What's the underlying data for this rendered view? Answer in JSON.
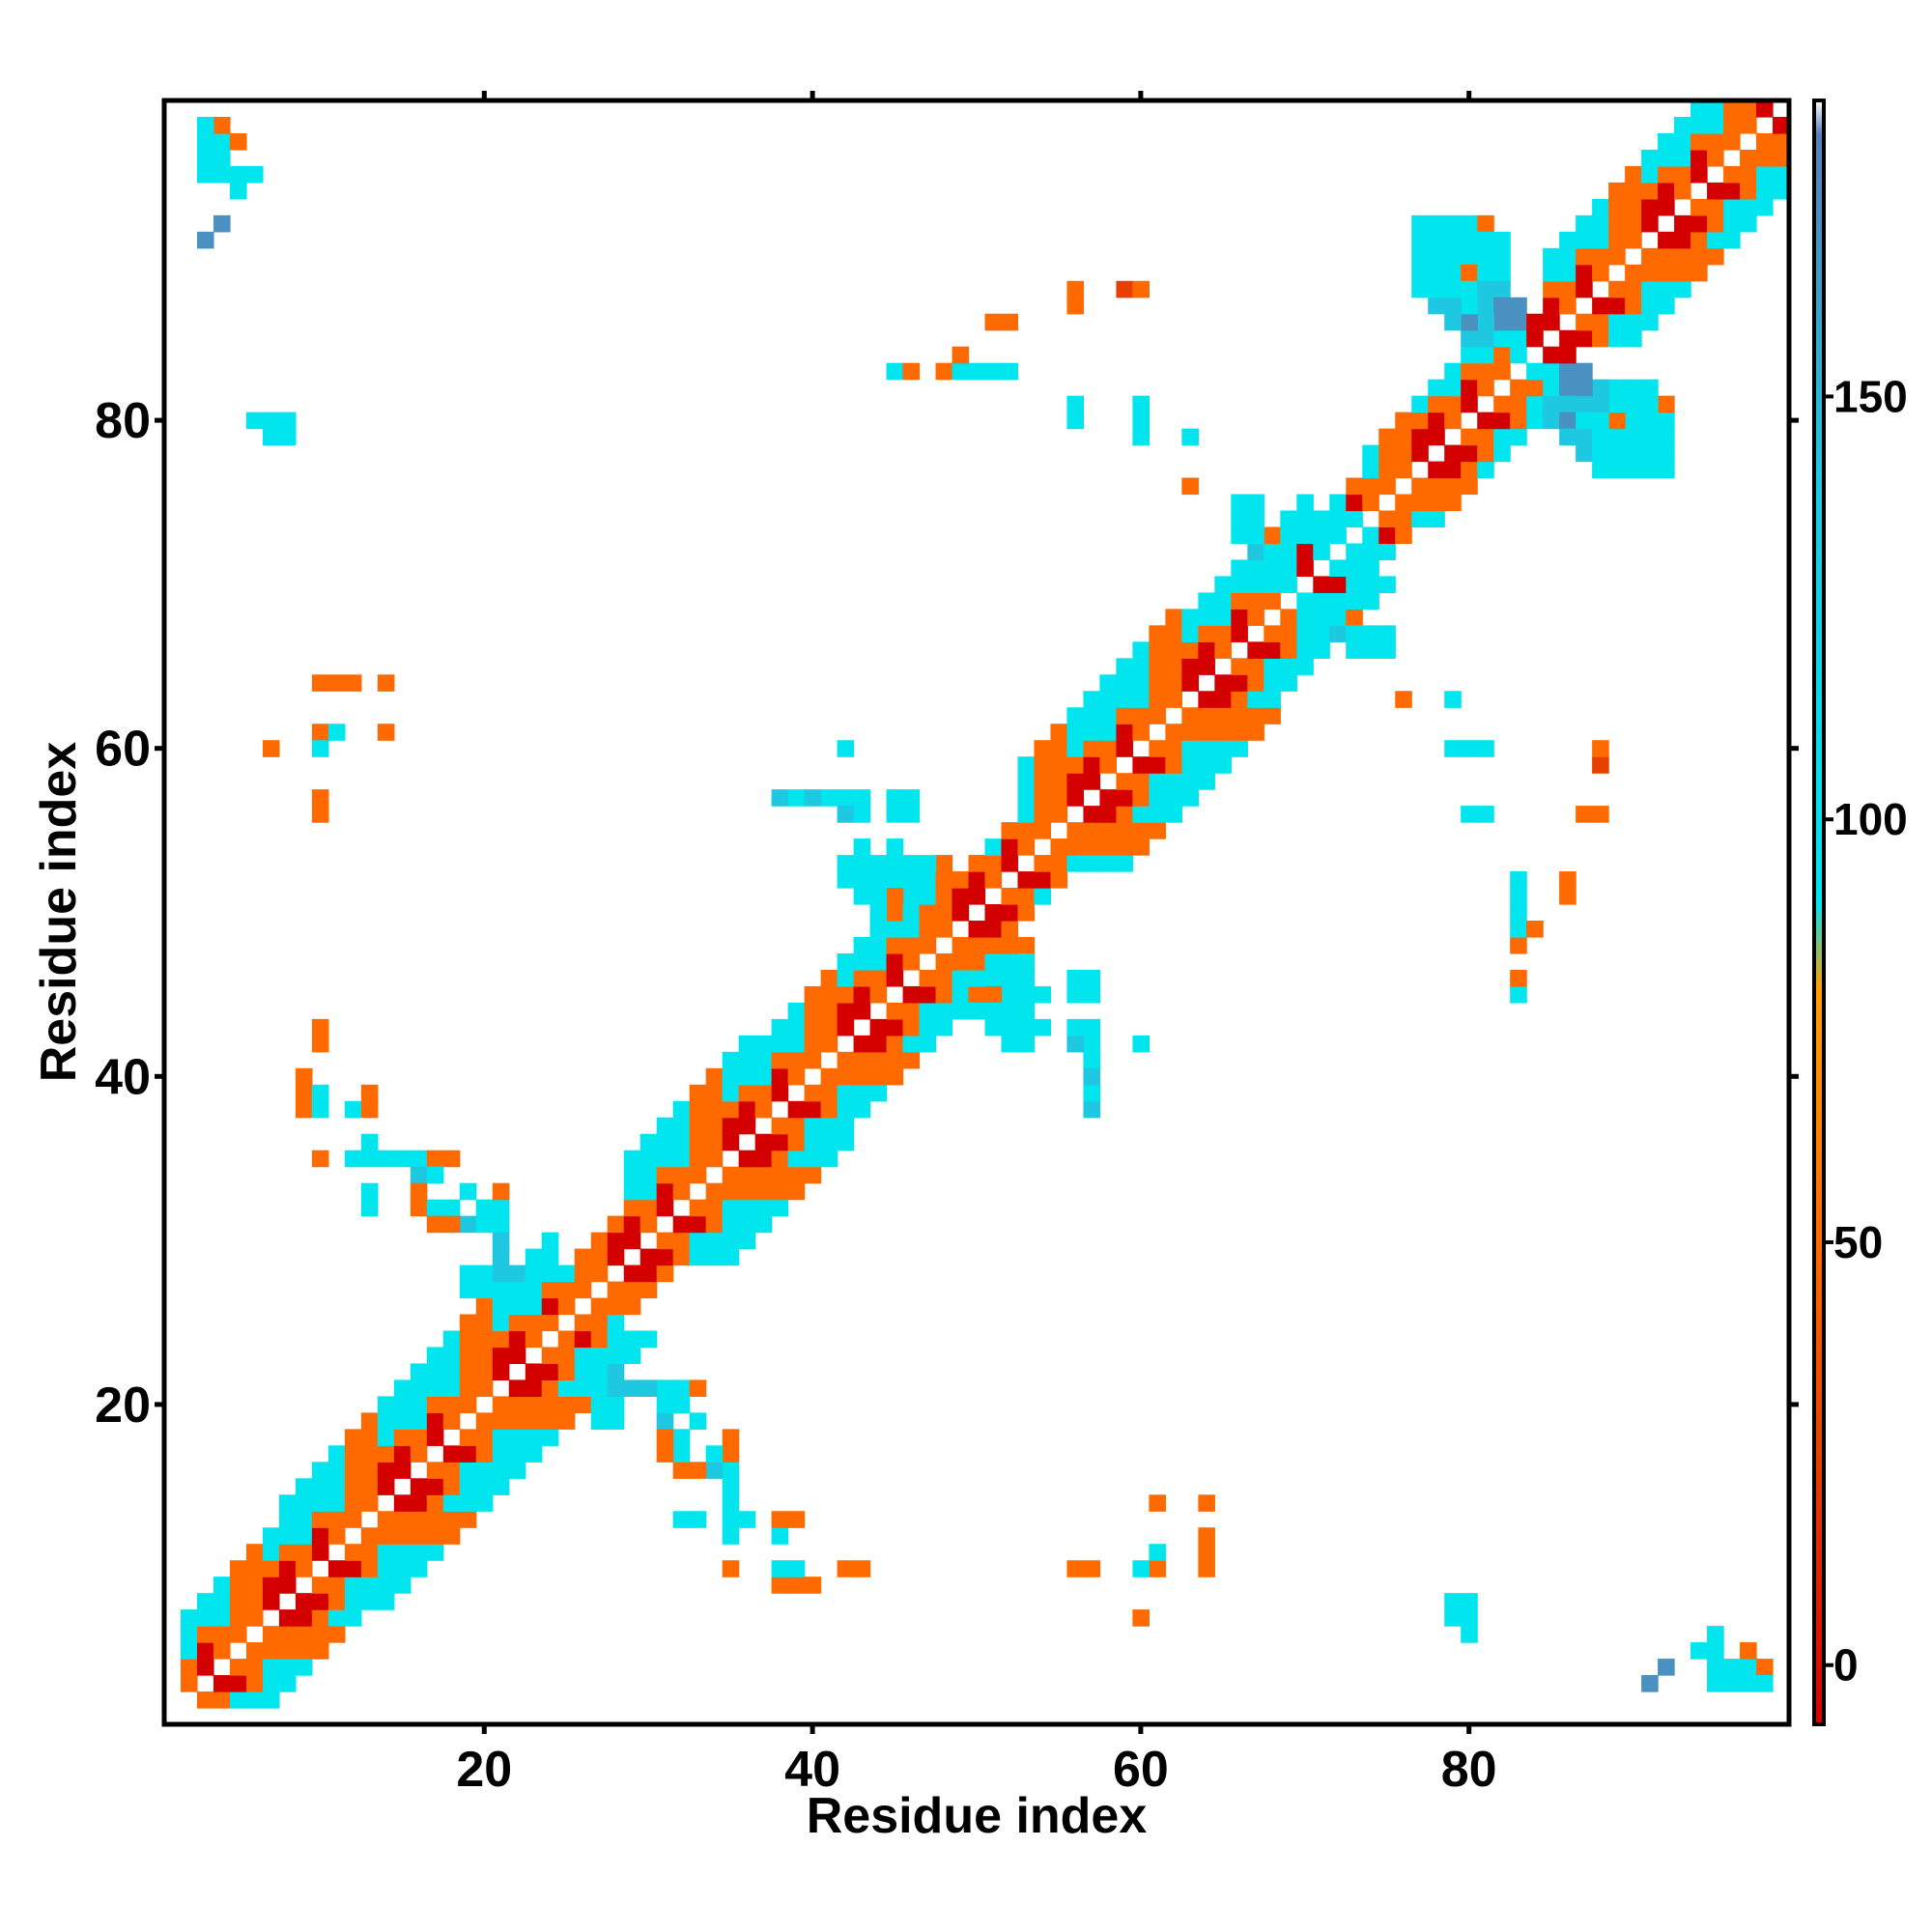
{
  "chart_data": {
    "type": "heatmap",
    "title": "",
    "xlabel": "Residue index",
    "ylabel": "Residue index",
    "xlim": [
      0.5,
      99.5
    ],
    "ylim": [
      0.5,
      99.5
    ],
    "x_ticks": [
      20,
      40,
      60,
      80
    ],
    "y_ticks": [
      20,
      40,
      60,
      80
    ],
    "symmetric": true,
    "grid": false,
    "legend": "colorbar-right",
    "colorbar": {
      "range": [
        -7,
        185
      ],
      "ticks": [
        0,
        50,
        100,
        150
      ],
      "stops": [
        {
          "value": -7,
          "color": "#d40000"
        },
        {
          "value": 25,
          "color": "#e84000"
        },
        {
          "value": 50,
          "color": "#ff6a00"
        },
        {
          "value": 80,
          "color": "#ffa000"
        },
        {
          "value": 90,
          "color": "#00e5ee"
        },
        {
          "value": 140,
          "color": "#1ec8e0"
        },
        {
          "value": 170,
          "color": "#4a90c0"
        },
        {
          "value": 181,
          "color": "#5a7fb8"
        },
        {
          "value": 185,
          "color": "#ffffff"
        }
      ]
    },
    "bands": [
      {
        "from": 2,
        "to": 8,
        "offset_range": [
          1,
          5
        ]
      },
      {
        "from": 8,
        "to": 24,
        "offset_range": [
          1,
          6
        ]
      },
      {
        "from": 24,
        "to": 29,
        "offset_range": [
          1,
          3
        ]
      },
      {
        "from": 29,
        "to": 36,
        "offset_range": [
          1,
          6
        ]
      },
      {
        "from": 36,
        "to": 48,
        "offset_range": [
          1,
          5
        ]
      },
      {
        "from": 48,
        "to": 53,
        "offset_range": [
          1,
          3
        ]
      },
      {
        "from": 53,
        "to": 62,
        "offset_range": [
          1,
          6
        ]
      },
      {
        "from": 62,
        "to": 70,
        "offset_range": [
          1,
          5
        ]
      },
      {
        "from": 70,
        "to": 74,
        "offset_range": [
          1,
          3
        ]
      },
      {
        "from": 74,
        "to": 83,
        "offset_range": [
          1,
          4
        ]
      },
      {
        "from": 83,
        "to": 85,
        "offset_range": [
          1,
          2
        ]
      },
      {
        "from": 85,
        "to": 99,
        "offset_range": [
          1,
          5
        ]
      }
    ],
    "off_diagonal_cells": [
      [
        3,
        97,
        50
      ],
      [
        4,
        97,
        50
      ],
      [
        5,
        97,
        50
      ],
      [
        3,
        96,
        110
      ],
      [
        4,
        96,
        125
      ],
      [
        3,
        95,
        110
      ],
      [
        4,
        95,
        125
      ],
      [
        5,
        95,
        110
      ],
      [
        6,
        95,
        90
      ],
      [
        5,
        94,
        110
      ],
      [
        4,
        92,
        170
      ],
      [
        8,
        80,
        90
      ],
      [
        7,
        80,
        125
      ],
      [
        8,
        79,
        125
      ],
      [
        10,
        64,
        70
      ],
      [
        11,
        64,
        70
      ],
      [
        12,
        64,
        60
      ],
      [
        14,
        64,
        70
      ],
      [
        10,
        61,
        60
      ],
      [
        11,
        61,
        90
      ],
      [
        10,
        60,
        110
      ],
      [
        7,
        60,
        60
      ],
      [
        14,
        61,
        60
      ],
      [
        10,
        57,
        60
      ],
      [
        10,
        42,
        70
      ],
      [
        9,
        39,
        60
      ],
      [
        10,
        39,
        110
      ],
      [
        9,
        38,
        110
      ],
      [
        12,
        38,
        125
      ],
      [
        13,
        38,
        60
      ],
      [
        13,
        39,
        60
      ],
      [
        10,
        35,
        70
      ],
      [
        12,
        35,
        110
      ],
      [
        13,
        35,
        125
      ],
      [
        14,
        35,
        125
      ],
      [
        15,
        35,
        160
      ],
      [
        16,
        35,
        70
      ],
      [
        17,
        35,
        70
      ],
      [
        13,
        36,
        110
      ],
      [
        16,
        34,
        160
      ],
      [
        13,
        32,
        90
      ],
      [
        16,
        32,
        50
      ],
      [
        17,
        32,
        160
      ],
      [
        18,
        32,
        160
      ],
      [
        20,
        32,
        70
      ],
      [
        17,
        31,
        70
      ],
      [
        19,
        31,
        160
      ],
      [
        20,
        31,
        90
      ],
      [
        21,
        31,
        90
      ],
      [
        19,
        28,
        90
      ],
      [
        20,
        28,
        110
      ],
      [
        20,
        27,
        125
      ],
      [
        22,
        28,
        110
      ],
      [
        23,
        28,
        110
      ],
      [
        21,
        28,
        160
      ],
      [
        22,
        27,
        125
      ],
      [
        25,
        24,
        70
      ],
      [
        24,
        24,
        110
      ],
      [
        28,
        22,
        160
      ],
      [
        27,
        21,
        110
      ],
      [
        28,
        21,
        160
      ],
      [
        29,
        21,
        160
      ],
      [
        30,
        21,
        160
      ],
      [
        31,
        21,
        110
      ],
      [
        32,
        21,
        110
      ],
      [
        33,
        21,
        70
      ],
      [
        32,
        20,
        110
      ],
      [
        33,
        19,
        125
      ],
      [
        27,
        19,
        90
      ],
      [
        31,
        18,
        70
      ],
      [
        32,
        18,
        110
      ],
      [
        32,
        17,
        125
      ],
      [
        34,
        17,
        125
      ],
      [
        35,
        18,
        70
      ],
      [
        35,
        17,
        70
      ],
      [
        35,
        16,
        110
      ],
      [
        35,
        15,
        110
      ],
      [
        33,
        16,
        70
      ],
      [
        33,
        13,
        90
      ],
      [
        35,
        13,
        110
      ],
      [
        36,
        13,
        125
      ],
      [
        38,
        13,
        70
      ],
      [
        39,
        13,
        70
      ],
      [
        38,
        12,
        125
      ],
      [
        35,
        10,
        70
      ],
      [
        38,
        10,
        110
      ],
      [
        39,
        10,
        125
      ],
      [
        43,
        10,
        70
      ],
      [
        38,
        9,
        60
      ],
      [
        40,
        9,
        60
      ],
      [
        56,
        10,
        60
      ],
      [
        60,
        10,
        110
      ],
      [
        61,
        10,
        60
      ],
      [
        61,
        11,
        90
      ],
      [
        64,
        11,
        60
      ],
      [
        64,
        10,
        70
      ],
      [
        61,
        14,
        60
      ],
      [
        64,
        14,
        70
      ],
      [
        60,
        7,
        60
      ],
      [
        79,
        7,
        125
      ],
      [
        80,
        7,
        125
      ],
      [
        80,
        6,
        110
      ],
      [
        91,
        3,
        170
      ],
      [
        96,
        4,
        90
      ],
      [
        97,
        4,
        110
      ],
      [
        98,
        4,
        60
      ],
      [
        96,
        3,
        110
      ],
      [
        97,
        3,
        125
      ],
      [
        98,
        3,
        125
      ],
      [
        95,
        3,
        125
      ],
      [
        42,
        60,
        110
      ],
      [
        38,
        57,
        160
      ],
      [
        39,
        57,
        125
      ],
      [
        42,
        57,
        110
      ],
      [
        43,
        57,
        110
      ],
      [
        46,
        57,
        110
      ],
      [
        42,
        56,
        160
      ],
      [
        43,
        56,
        125
      ],
      [
        46,
        56,
        125
      ],
      [
        42,
        53,
        110
      ],
      [
        43,
        53,
        125
      ],
      [
        44,
        53,
        125
      ],
      [
        45,
        53,
        110
      ],
      [
        46,
        53,
        110
      ],
      [
        47,
        53,
        125
      ],
      [
        42,
        52,
        125
      ],
      [
        43,
        52,
        110
      ],
      [
        44,
        52,
        125
      ],
      [
        45,
        52,
        110
      ],
      [
        46,
        52,
        90
      ],
      [
        47,
        52,
        110
      ],
      [
        43,
        51,
        110
      ],
      [
        46,
        51,
        90
      ],
      [
        47,
        51,
        90
      ],
      [
        44,
        50,
        110
      ],
      [
        50,
        45,
        70
      ],
      [
        51,
        45,
        60
      ],
      [
        51,
        44,
        110
      ],
      [
        52,
        44,
        125
      ],
      [
        53,
        45,
        125
      ],
      [
        54,
        45,
        110
      ],
      [
        56,
        45,
        110
      ],
      [
        57,
        45,
        110
      ],
      [
        52,
        43,
        110
      ],
      [
        53,
        43,
        125
      ],
      [
        54,
        43,
        110
      ],
      [
        57,
        43,
        125
      ],
      [
        56,
        42,
        160
      ],
      [
        57,
        42,
        125
      ],
      [
        60,
        42,
        125
      ],
      [
        57,
        41,
        110
      ],
      [
        57,
        40,
        160
      ],
      [
        57,
        39,
        110
      ],
      [
        45,
        83,
        110
      ],
      [
        46,
        83,
        70
      ],
      [
        48,
        83,
        60
      ],
      [
        49,
        83,
        70
      ],
      [
        50,
        83,
        90
      ],
      [
        52,
        83,
        110
      ],
      [
        49,
        84,
        60
      ],
      [
        52,
        86,
        60
      ],
      [
        56,
        88,
        50
      ],
      [
        56,
        87,
        60
      ],
      [
        59,
        88,
        40
      ],
      [
        60,
        88,
        70
      ],
      [
        56,
        81,
        125
      ],
      [
        60,
        81,
        125
      ],
      [
        60,
        80,
        110
      ],
      [
        60,
        79,
        110
      ],
      [
        63,
        79,
        125
      ],
      [
        63,
        76,
        70
      ],
      [
        76,
        63,
        70
      ],
      [
        79,
        63,
        110
      ],
      [
        79,
        60,
        110
      ],
      [
        80,
        60,
        110
      ],
      [
        81,
        60,
        110
      ],
      [
        80,
        56,
        125
      ],
      [
        83,
        51,
        125
      ],
      [
        86,
        51,
        60
      ],
      [
        83,
        49,
        110
      ],
      [
        84,
        49,
        60
      ],
      [
        83,
        48,
        70
      ],
      [
        83,
        46,
        70
      ],
      [
        83,
        45,
        110
      ],
      [
        88,
        60,
        60
      ],
      [
        88,
        59,
        40
      ],
      [
        87,
        56,
        50
      ],
      [
        88,
        56,
        50
      ]
    ],
    "wing_cells": [
      [
        77,
        92,
        110
      ],
      [
        78,
        92,
        125
      ],
      [
        79,
        92,
        125
      ],
      [
        80,
        92,
        125
      ],
      [
        81,
        92,
        60
      ],
      [
        77,
        91,
        110
      ],
      [
        78,
        91,
        125
      ],
      [
        79,
        91,
        125
      ],
      [
        80,
        91,
        110
      ],
      [
        81,
        91,
        125
      ],
      [
        82,
        91,
        125
      ],
      [
        77,
        90,
        125
      ],
      [
        78,
        90,
        125
      ],
      [
        79,
        90,
        125
      ],
      [
        80,
        90,
        125
      ],
      [
        81,
        90,
        125
      ],
      [
        82,
        90,
        125
      ],
      [
        79,
        89,
        125
      ],
      [
        80,
        89,
        160
      ],
      [
        81,
        89,
        125
      ],
      [
        82,
        89,
        125
      ],
      [
        80,
        88,
        160
      ],
      [
        81,
        88,
        160
      ],
      [
        82,
        88,
        160
      ],
      [
        81,
        87,
        160
      ],
      [
        82,
        87,
        170
      ],
      [
        83,
        87,
        170
      ],
      [
        81,
        86,
        125
      ],
      [
        82,
        86,
        170
      ],
      [
        83,
        86,
        170
      ],
      [
        82,
        85,
        125
      ],
      [
        83,
        85,
        125
      ],
      [
        83,
        84,
        110
      ],
      [
        84,
        81,
        110
      ],
      [
        85,
        81,
        160
      ],
      [
        86,
        81,
        160
      ],
      [
        87,
        81,
        160
      ],
      [
        85,
        80,
        160
      ],
      [
        86,
        80,
        170
      ],
      [
        87,
        80,
        125
      ],
      [
        88,
        80,
        110
      ],
      [
        89,
        80,
        60
      ],
      [
        86,
        79,
        160
      ],
      [
        87,
        79,
        160
      ],
      [
        88,
        79,
        125
      ],
      [
        89,
        79,
        110
      ],
      [
        90,
        79,
        110
      ],
      [
        87,
        78,
        160
      ],
      [
        88,
        78,
        125
      ],
      [
        89,
        78,
        125
      ],
      [
        90,
        78,
        125
      ],
      [
        88,
        77,
        110
      ],
      [
        89,
        77,
        110
      ],
      [
        90,
        77,
        110
      ],
      [
        66,
        75,
        125
      ],
      [
        67,
        75,
        110
      ],
      [
        66,
        74,
        125
      ],
      [
        67,
        74,
        125
      ],
      [
        69,
        74,
        110
      ],
      [
        70,
        74,
        110
      ],
      [
        71,
        74,
        110
      ],
      [
        72,
        74,
        125
      ],
      [
        73,
        74,
        110
      ],
      [
        67,
        73,
        125
      ],
      [
        69,
        73,
        125
      ],
      [
        70,
        73,
        125
      ],
      [
        71,
        73,
        110
      ],
      [
        72,
        73,
        125
      ],
      [
        73,
        73,
        110
      ],
      [
        74,
        73,
        110
      ],
      [
        68,
        72,
        110
      ],
      [
        69,
        72,
        125
      ],
      [
        72,
        72,
        125
      ],
      [
        74,
        72,
        110
      ],
      [
        67,
        71,
        125
      ],
      [
        68,
        71,
        125
      ],
      [
        71,
        71,
        125
      ],
      [
        72,
        71,
        125
      ],
      [
        73,
        71,
        110
      ],
      [
        74,
        71,
        125
      ],
      [
        67,
        70,
        110
      ],
      [
        70,
        70,
        125
      ],
      [
        73,
        70,
        110
      ],
      [
        69,
        69,
        125
      ],
      [
        70,
        69,
        125
      ],
      [
        71,
        69,
        110
      ],
      [
        72,
        69,
        110
      ],
      [
        73,
        69,
        125
      ],
      [
        70,
        68,
        125
      ],
      [
        71,
        68,
        125
      ],
      [
        72,
        67,
        160
      ],
      [
        73,
        67,
        125
      ],
      [
        74,
        67,
        125
      ],
      [
        75,
        67,
        110
      ],
      [
        73,
        66,
        125
      ],
      [
        74,
        66,
        125
      ]
    ]
  }
}
